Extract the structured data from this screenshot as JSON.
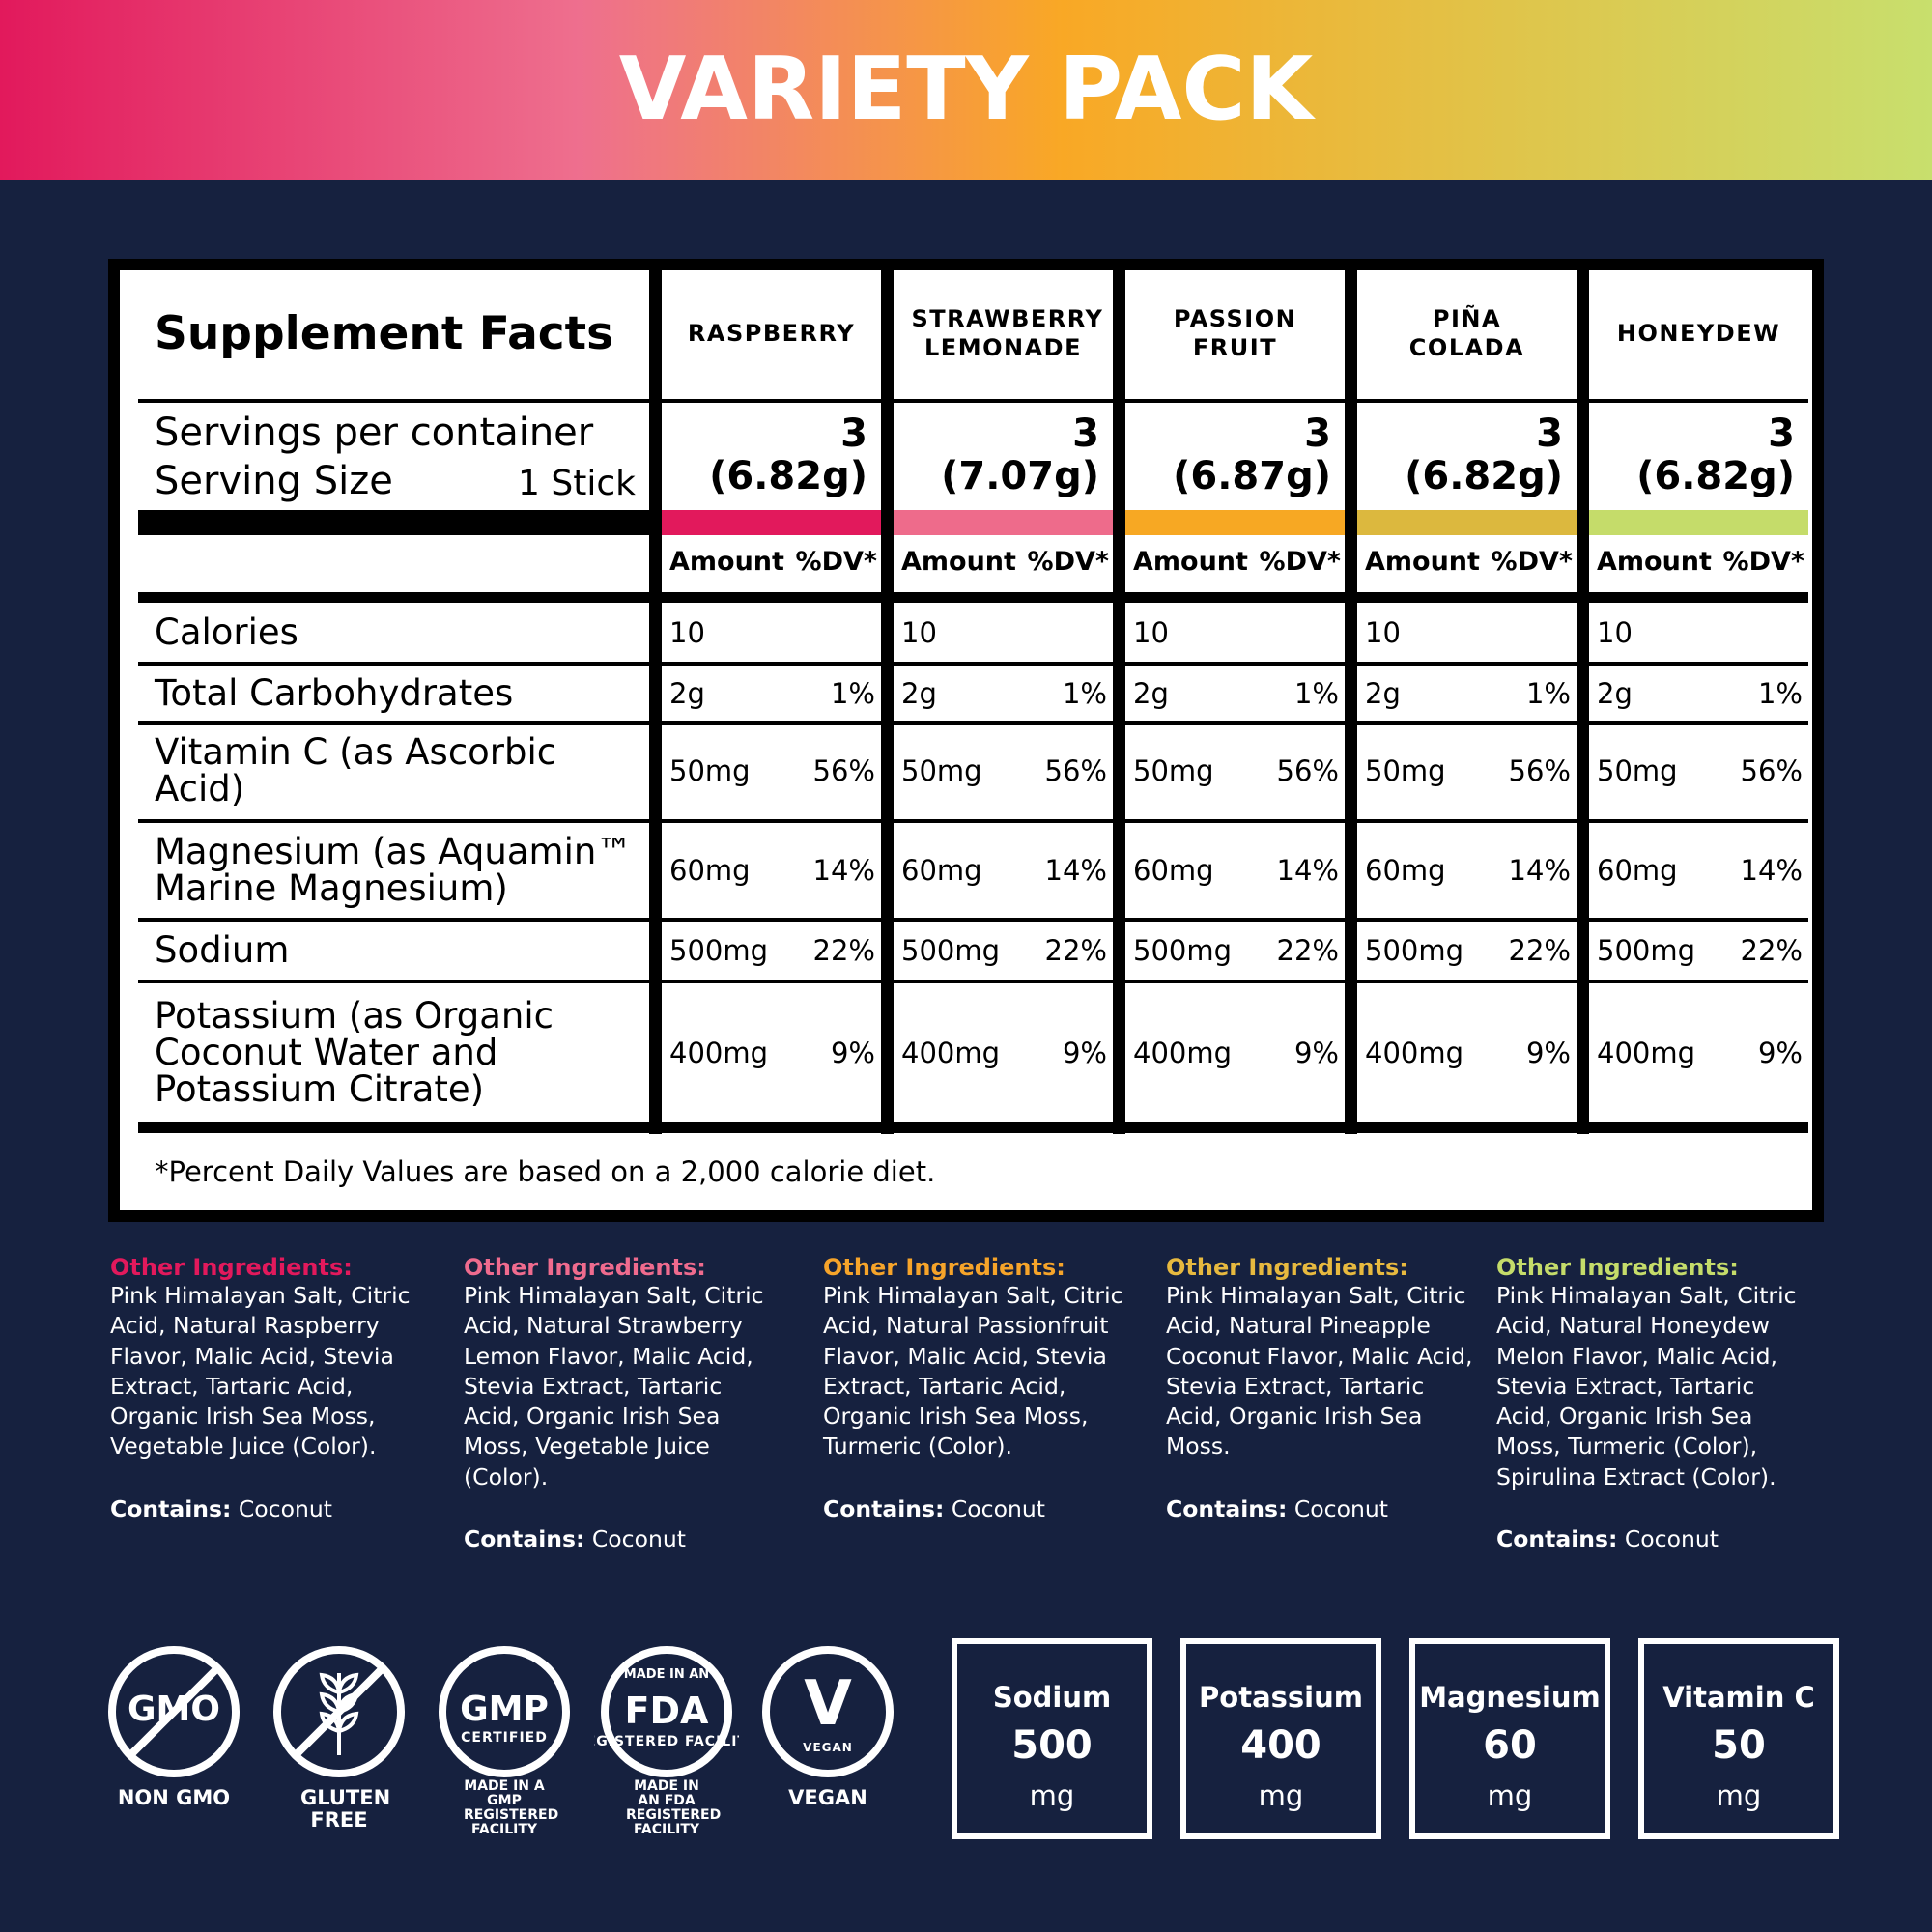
{
  "header": {
    "title": "VARIETY PACK"
  },
  "facts": {
    "title": "Supplement Facts",
    "servings_label": "Servings per container",
    "serving_size_label": "Serving Size",
    "serving_size": "1 Stick",
    "amount_label": "Amount",
    "dv_label": "%DV*",
    "nutrients": [
      "Calories",
      "Total Carbohydrates",
      "Vitamin C (as Ascorbic Acid)",
      "Magnesium (as Aquamin™ Marine Magnesium)",
      "Sodium",
      "Potassium (as Organic Coconut Water and Potassium Citrate)"
    ],
    "flavors": [
      {
        "name": "RASPBERRY",
        "servings": "3",
        "weight": "(6.82g)",
        "color": "#e2195c",
        "rows": [
          {
            "amount": "10"
          },
          {
            "amount": "2g",
            "dv": "1%"
          },
          {
            "amount": "50mg",
            "dv": "56%"
          },
          {
            "amount": "60mg",
            "dv": "14%"
          },
          {
            "amount": "500mg",
            "dv": "22%"
          },
          {
            "amount": "400mg",
            "dv": "9%"
          }
        ]
      },
      {
        "name": "STRAWBERRY LEMONADE",
        "servings": "3",
        "weight": "(7.07g)",
        "color": "#ee6b8b",
        "rows": [
          {
            "amount": "10"
          },
          {
            "amount": "2g",
            "dv": "1%"
          },
          {
            "amount": "50mg",
            "dv": "56%"
          },
          {
            "amount": "60mg",
            "dv": "14%"
          },
          {
            "amount": "500mg",
            "dv": "22%"
          },
          {
            "amount": "400mg",
            "dv": "9%"
          }
        ]
      },
      {
        "name": "PASSION FRUIT",
        "servings": "3",
        "weight": "(6.87g)",
        "color": "#f7a823",
        "rows": [
          {
            "amount": "10"
          },
          {
            "amount": "2g",
            "dv": "1%"
          },
          {
            "amount": "50mg",
            "dv": "56%"
          },
          {
            "amount": "60mg",
            "dv": "14%"
          },
          {
            "amount": "500mg",
            "dv": "22%"
          },
          {
            "amount": "400mg",
            "dv": "9%"
          }
        ]
      },
      {
        "name": "PIÑA COLADA",
        "servings": "3",
        "weight": "(6.82g)",
        "color": "#dcb83e",
        "rows": [
          {
            "amount": "10"
          },
          {
            "amount": "2g",
            "dv": "1%"
          },
          {
            "amount": "50mg",
            "dv": "56%"
          },
          {
            "amount": "60mg",
            "dv": "14%"
          },
          {
            "amount": "500mg",
            "dv": "22%"
          },
          {
            "amount": "400mg",
            "dv": "9%"
          }
        ]
      },
      {
        "name": "HONEYDEW",
        "servings": "3",
        "weight": "(6.82g)",
        "color": "#c5dc6a",
        "rows": [
          {
            "amount": "10"
          },
          {
            "amount": "2g",
            "dv": "1%"
          },
          {
            "amount": "50mg",
            "dv": "56%"
          },
          {
            "amount": "60mg",
            "dv": "14%"
          },
          {
            "amount": "500mg",
            "dv": "22%"
          },
          {
            "amount": "400mg",
            "dv": "9%"
          }
        ]
      }
    ],
    "footnote": "*Percent Daily Values are based on a 2,000 calorie diet."
  },
  "ingredients": [
    {
      "label": "Other Ingredients:",
      "color": "#e2195c",
      "text": "Pink Himalayan Salt, Citric Acid, Natural Raspberry Flavor, Malic Acid, Stevia Extract, Tartaric Acid, Organic Irish Sea Moss, Vegetable Juice (Color).",
      "contains_label": "Contains:",
      "contains": "Coconut"
    },
    {
      "label": "Other Ingredients:",
      "color": "#ef6b8e",
      "text": "Pink Himalayan Salt, Citric Acid, Natural Strawberry Lemon Flavor, Malic Acid, Stevia Extract, Tartaric Acid, Organic Irish Sea Moss, Vegetable Juice (Color).",
      "contains_label": "Contains:",
      "contains": "Coconut"
    },
    {
      "label": "Other Ingredients:",
      "color": "#f6a42a",
      "text": "Pink Himalayan Salt, Citric Acid, Natural Passionfruit Flavor, Malic Acid, Stevia Extract, Tartaric Acid, Organic Irish Sea Moss, Turmeric (Color).",
      "contains_label": "Contains:",
      "contains": "Coconut"
    },
    {
      "label": "Other Ingredients:",
      "color": "#e7b93f",
      "text": "Pink Himalayan Salt, Citric Acid, Natural Pineapple Coconut Flavor, Malic Acid, Stevia Extract, Tartaric Acid, Organic Irish Sea Moss.",
      "contains_label": "Contains:",
      "contains": "Coconut"
    },
    {
      "label": "Other Ingredients:",
      "color": "#c5dc6a",
      "text": "Pink Himalayan Salt, Citric Acid, Natural Honeydew Melon Flavor, Malic Acid, Stevia Extract, Tartaric Acid, Organic Irish Sea Moss, Turmeric (Color), Spirulina Extract (Color).",
      "contains_label": "Contains:",
      "contains": "Coconut"
    }
  ],
  "badges": [
    {
      "icon": "GMO",
      "label": "NON GMO"
    },
    {
      "label": "GLUTEN FREE"
    },
    {
      "icon": "GMP",
      "icon_sub": "CERTIFIED",
      "label": "MADE IN A GMP REGISTERED FACILITY"
    },
    {
      "icon_top": "MADE IN AN",
      "icon": "FDA",
      "icon_sub": "REGISTERED FACILITY",
      "label": "MADE IN AN FDA REGISTERED FACILITY"
    },
    {
      "icon": "V",
      "icon_sub": "VEGAN",
      "label": "VEGAN"
    }
  ],
  "highlights": [
    {
      "name": "Sodium",
      "amount": "500",
      "unit": "mg"
    },
    {
      "name": "Potassium",
      "amount": "400",
      "unit": "mg"
    },
    {
      "name": "Magnesium",
      "amount": "60",
      "unit": "mg"
    },
    {
      "name": "Vitamin C",
      "amount": "50",
      "unit": "mg"
    }
  ]
}
